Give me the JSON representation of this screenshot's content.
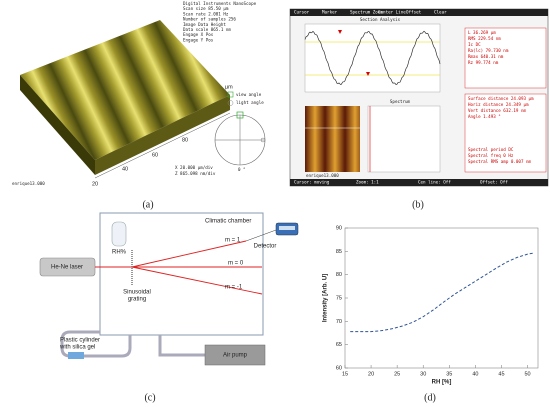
{
  "panels": {
    "a": {
      "label": "(a)",
      "info": [
        "Digital Instruments NanoScope",
        "Scan size 85.50 µm",
        "Scan rate 2.001 Hz",
        "Number of samples 256",
        "Image Data Height",
        "Data scale 865.1 nm",
        "Engage X Pos",
        "Engage Y Pos"
      ],
      "view_angle": "view angle",
      "light_angle": "light angle",
      "angle_zero": "0 °",
      "scale": [
        "X 20.000 µm/div",
        "Z 865.098 nm/div"
      ],
      "file": "enrique13.000",
      "axis_ticks": [
        "20",
        "40",
        "60",
        "80"
      ],
      "axis_unit": "µm"
    },
    "b": {
      "label": "(b)",
      "menu": [
        "Cursor",
        "Marker",
        "Spectrum Zoom",
        "Center Line",
        "Offset",
        "Clear"
      ],
      "title": "Section Analysis",
      "spectrum": "Spectrum",
      "stats": [
        "L 36.269 µm",
        "RMS 229.54 nm",
        "Ic DC",
        "Ra(lc) 79.730 nm",
        "Rmax 640.31 nm",
        "Rz 99.774 nm"
      ],
      "measure": [
        "Surface distance 24.093 µm",
        "Horiz distance 24.349 µm",
        "Vert distance 632.19 nm",
        "Angle 1.493 °"
      ],
      "spectral": [
        "Spectral period DC",
        "Spectral freq 0 Hz",
        "Spectral RMS amp 0.007 nm"
      ],
      "file": "enrique13.000",
      "status": [
        "Cursor: moving",
        "Zoom: 1:1",
        "Cen line: Off",
        "Offset: Off"
      ]
    },
    "c": {
      "label": "(c)",
      "chamber": "Climatic chamber",
      "rh": "RH%",
      "detector": "Detector",
      "laser": "He-Ne laser",
      "orders": [
        "m = 1",
        "m = 0",
        "m = -1"
      ],
      "grating": [
        "Sinusoidal",
        "grating"
      ],
      "cylinder": [
        "Plastic cylinder",
        "with silica gel"
      ],
      "pump": "Air pump"
    },
    "d": {
      "label": "(d)"
    }
  },
  "chart_data": {
    "type": "line",
    "x": [
      16,
      18,
      20,
      22,
      24,
      26,
      28,
      30,
      32,
      34,
      36,
      38,
      40,
      42,
      44,
      46,
      48,
      50,
      51
    ],
    "series": [
      {
        "name": "Intensity",
        "color": "#2f5597",
        "values": [
          67.8,
          67.8,
          67.8,
          68.0,
          68.4,
          69.0,
          69.8,
          71.0,
          72.5,
          74.2,
          75.8,
          77.2,
          78.6,
          80.0,
          81.4,
          82.7,
          83.7,
          84.4,
          84.6
        ]
      }
    ],
    "xlabel": "RH [%]",
    "ylabel": "Intensity [Arb. U]",
    "xlim": [
      15,
      52
    ],
    "ylim": [
      60,
      90
    ],
    "xticks": [
      15,
      20,
      25,
      30,
      35,
      40,
      45,
      50
    ],
    "yticks": [
      60,
      65,
      70,
      75,
      80,
      85,
      90
    ],
    "dashed": true
  }
}
